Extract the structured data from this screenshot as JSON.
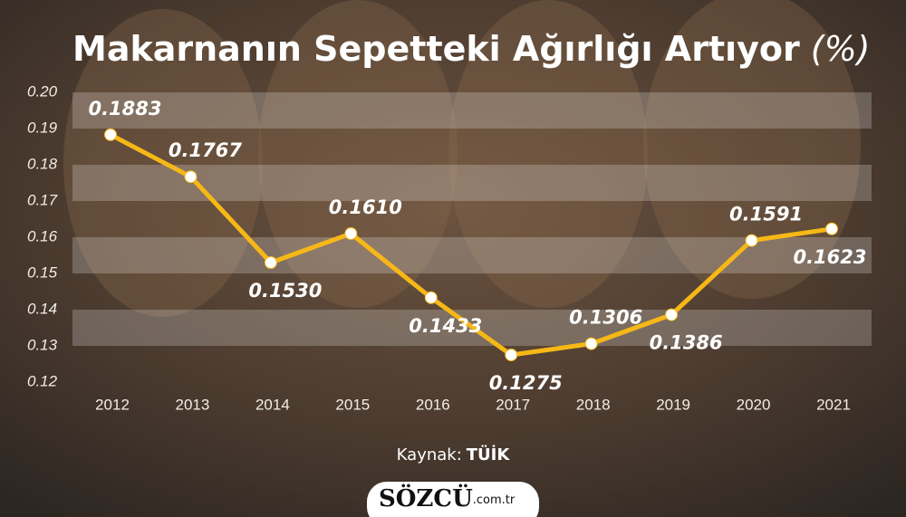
{
  "chart_data": {
    "type": "line",
    "title": "Makarnanın Sepetteki Ağırlığı Artıyor",
    "title_unit": "(%)",
    "categories": [
      "2012",
      "2013",
      "2014",
      "2015",
      "2016",
      "2017",
      "2018",
      "2019",
      "2020",
      "2021"
    ],
    "values": [
      0.1883,
      0.1767,
      0.153,
      0.161,
      0.1433,
      0.1275,
      0.1306,
      0.1386,
      0.1591,
      0.1623
    ],
    "value_labels": [
      "0.1883",
      "0.1767",
      "0.1530",
      "0.1610",
      "0.1433",
      "0.1275",
      "0.1306",
      "0.1386",
      "0.1591",
      "0.1623"
    ],
    "color": "#f6b817",
    "ylim": [
      0.12,
      0.2
    ],
    "yticks": [
      {
        "value": 0.2,
        "label": "0.20"
      },
      0.19,
      0.18,
      0.17,
      0.16,
      0.15,
      0.14,
      0.13,
      0.12
    ],
    "grid": true
  },
  "footer": {
    "source_label": "Kaynak:",
    "source": "TÜİK",
    "brand": "SÖZCÜ",
    "brand_domain": ".com.tr"
  }
}
